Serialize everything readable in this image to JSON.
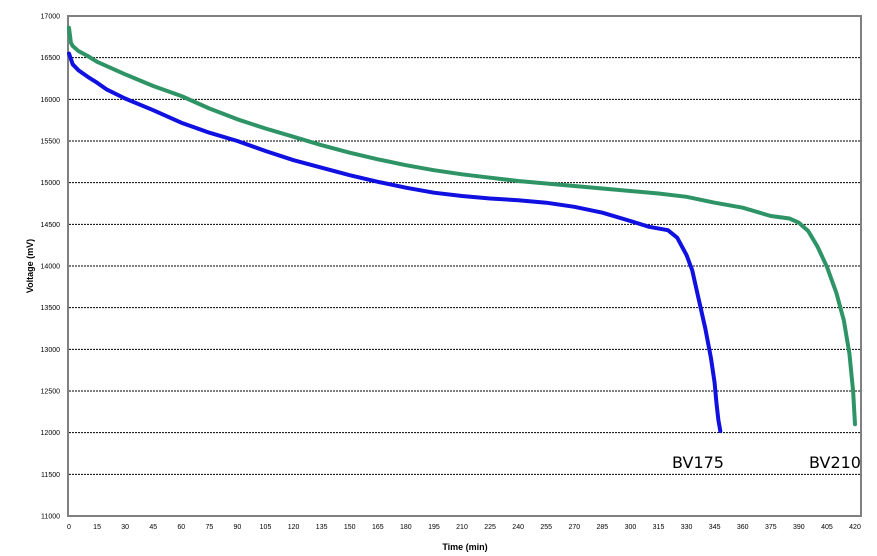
{
  "chart_data": {
    "type": "line",
    "title": "",
    "xlabel": "Time (min)",
    "ylabel": "Voltage (mV)",
    "xlim": [
      0,
      420
    ],
    "ylim": [
      11000,
      17000
    ],
    "x_ticks": [
      0,
      15,
      30,
      45,
      60,
      75,
      90,
      105,
      120,
      135,
      150,
      165,
      180,
      195,
      210,
      225,
      240,
      255,
      270,
      285,
      300,
      315,
      330,
      345,
      360,
      375,
      390,
      405,
      420
    ],
    "y_ticks": [
      11000,
      11500,
      12000,
      12500,
      13000,
      13500,
      14000,
      14500,
      15000,
      15500,
      16000,
      16500,
      17000
    ],
    "grid": "horizontal dashed",
    "series": [
      {
        "name": "BV175",
        "color": "#1010e0",
        "x": [
          0,
          2,
          5,
          10,
          15,
          20,
          30,
          45,
          60,
          75,
          90,
          105,
          120,
          135,
          150,
          165,
          180,
          195,
          210,
          225,
          240,
          255,
          270,
          285,
          300,
          310,
          320,
          325,
          330,
          333,
          336,
          340,
          343,
          345,
          346,
          347,
          348
        ],
        "y": [
          16550,
          16420,
          16350,
          16270,
          16200,
          16120,
          16010,
          15870,
          15720,
          15600,
          15500,
          15380,
          15270,
          15180,
          15090,
          15010,
          14940,
          14880,
          14840,
          14810,
          14790,
          14760,
          14710,
          14640,
          14540,
          14470,
          14430,
          14340,
          14130,
          13950,
          13650,
          13250,
          12900,
          12600,
          12350,
          12150,
          12020
        ]
      },
      {
        "name": "BV210",
        "color": "#2e9466",
        "x": [
          0,
          1,
          2,
          5,
          10,
          15,
          30,
          45,
          60,
          75,
          90,
          105,
          120,
          135,
          150,
          165,
          180,
          195,
          210,
          225,
          240,
          255,
          270,
          285,
          300,
          315,
          330,
          345,
          360,
          375,
          385,
          390,
          395,
          400,
          405,
          410,
          414,
          417,
          419,
          420
        ],
        "y": [
          16860,
          16680,
          16640,
          16580,
          16520,
          16450,
          16300,
          16160,
          16040,
          15890,
          15760,
          15650,
          15550,
          15450,
          15360,
          15280,
          15210,
          15150,
          15100,
          15060,
          15020,
          14990,
          14960,
          14930,
          14900,
          14870,
          14830,
          14760,
          14700,
          14600,
          14570,
          14520,
          14420,
          14230,
          13990,
          13680,
          13350,
          12950,
          12500,
          12100
        ]
      }
    ],
    "annotations": [
      "BV175",
      "BV210"
    ]
  }
}
